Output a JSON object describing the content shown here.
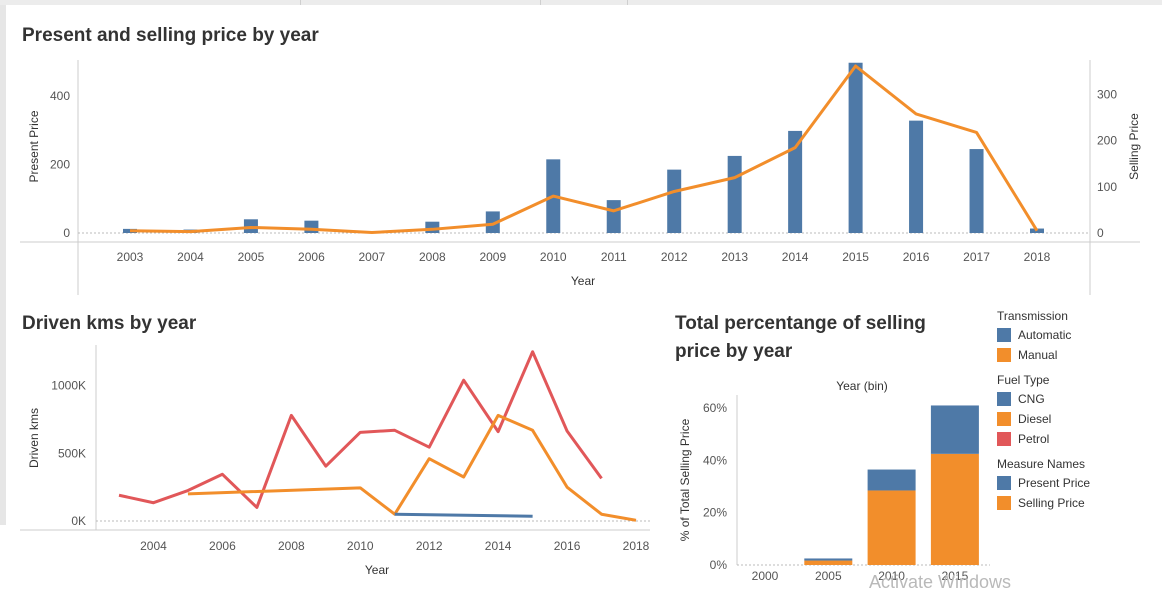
{
  "colors": {
    "blue": "#4e79a7",
    "orange": "#f28e2b",
    "red": "#e15759",
    "axis": "#555555",
    "grid": "#d9d9d9"
  },
  "chart_data": [
    {
      "type": "bar",
      "title": "Present and selling price by year",
      "xlabel": "Year",
      "ylabel": "Present Price",
      "y2label": "Selling Price",
      "categories": [
        "2003",
        "2004",
        "2005",
        "2006",
        "2007",
        "2008",
        "2009",
        "2010",
        "2011",
        "2012",
        "2013",
        "2014",
        "2015",
        "2016",
        "2017",
        "2018"
      ],
      "series": [
        {
          "name": "Present Price",
          "kind": "bar",
          "axis": "left",
          "color": "#4e79a7",
          "values": [
            12,
            10,
            40,
            36,
            0,
            33,
            63,
            215,
            96,
            185,
            225,
            298,
            497,
            328,
            245,
            13
          ]
        },
        {
          "name": "Selling Price",
          "kind": "line",
          "axis": "right",
          "color": "#f28e2b",
          "values": [
            5,
            3,
            12,
            8,
            1,
            8,
            19,
            80,
            48,
            90,
            120,
            185,
            362,
            258,
            218,
            5
          ]
        }
      ],
      "ylim": [
        0,
        505
      ],
      "yticks": [
        0,
        200,
        400
      ],
      "y2lim": [
        0,
        375
      ],
      "y2ticks": [
        0,
        100,
        200,
        300
      ],
      "grid": false
    },
    {
      "type": "line",
      "title": "Driven kms by year",
      "xlabel": "Year",
      "ylabel": "Driven kms",
      "xlim": [
        2002.5,
        2018.5
      ],
      "xticks": [
        2004,
        2006,
        2008,
        2010,
        2012,
        2014,
        2016,
        2018
      ],
      "ylim": [
        0,
        1300000
      ],
      "yticks": [
        0,
        500000,
        1000000
      ],
      "ytick_labels": [
        "0K",
        "500K",
        "1000K"
      ],
      "series": [
        {
          "color": "#e15759",
          "points": [
            [
              2003,
              190000
            ],
            [
              2004,
              135000
            ],
            [
              2005,
              225000
            ],
            [
              2006,
              345000
            ],
            [
              2007,
              100000
            ],
            [
              2008,
              780000
            ],
            [
              2009,
              405000
            ],
            [
              2010,
              655000
            ],
            [
              2011,
              670000
            ],
            [
              2012,
              545000
            ],
            [
              2013,
              1040000
            ],
            [
              2014,
              660000
            ],
            [
              2015,
              1250000
            ],
            [
              2016,
              665000
            ],
            [
              2017,
              315000
            ]
          ]
        },
        {
          "color": "#f28e2b",
          "points": [
            [
              2005,
              200000
            ],
            [
              2010,
              245000
            ],
            [
              2011,
              50000
            ],
            [
              2012,
              460000
            ],
            [
              2013,
              325000
            ],
            [
              2014,
              780000
            ],
            [
              2015,
              670000
            ],
            [
              2016,
              250000
            ],
            [
              2017,
              50000
            ],
            [
              2018,
              5000
            ]
          ]
        },
        {
          "color": "#4e79a7",
          "points": [
            [
              2011,
              50000
            ],
            [
              2015,
              35000
            ]
          ]
        }
      ],
      "grid": false
    },
    {
      "type": "bar",
      "stacked": true,
      "title": "Total percentange of selling price by year",
      "xlabel": "Year (bin)",
      "ylabel": "% of Total Selling Price",
      "categories": [
        "2000",
        "2005",
        "2010",
        "2015"
      ],
      "series": [
        {
          "name": "Selling Price",
          "color": "#f28e2b",
          "values": [
            0,
            1.7,
            28.5,
            42.5
          ]
        },
        {
          "name": "Present Price",
          "color": "#4e79a7",
          "values": [
            0,
            0.8,
            8.0,
            18.5
          ]
        }
      ],
      "ylim": [
        0,
        65
      ],
      "yticks": [
        0,
        20,
        40,
        60
      ],
      "ytick_labels": [
        "0%",
        "20%",
        "40%",
        "60%"
      ],
      "grid": false
    }
  ],
  "legend": {
    "sections": [
      {
        "title": "Transmission",
        "items": [
          {
            "label": "Automatic",
            "color": "#4e79a7"
          },
          {
            "label": "Manual",
            "color": "#f28e2b"
          }
        ]
      },
      {
        "title": "Fuel Type",
        "items": [
          {
            "label": "CNG",
            "color": "#4e79a7"
          },
          {
            "label": "Diesel",
            "color": "#f28e2b"
          },
          {
            "label": "Petrol",
            "color": "#e15759"
          }
        ]
      },
      {
        "title": "Measure Names",
        "items": [
          {
            "label": "Present Price",
            "color": "#4e79a7"
          },
          {
            "label": "Selling Price",
            "color": "#f28e2b"
          }
        ]
      }
    ]
  },
  "watermark": "Activate Windows"
}
